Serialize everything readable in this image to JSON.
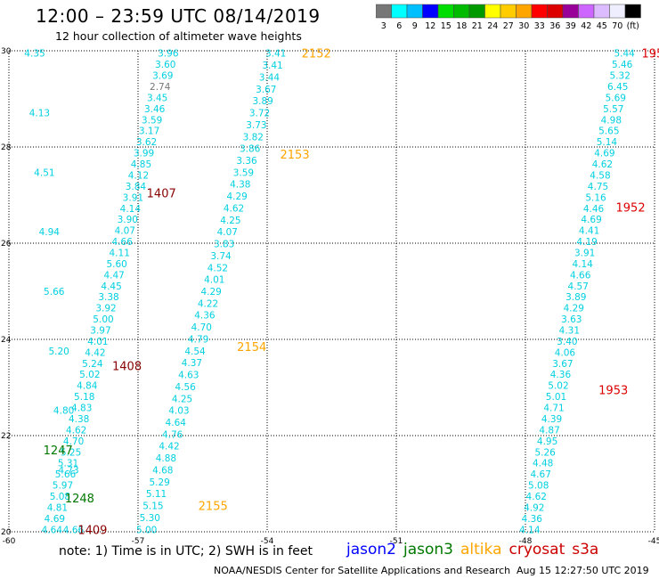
{
  "header": {
    "title": "12:00 – 23:59 UTC 08/14/2019",
    "subtitle": "12 hour collection of altimeter wave heights"
  },
  "color_scale": {
    "colors": [
      "#777777",
      "#00ffff",
      "#00bfff",
      "#0000ff",
      "#00dd00",
      "#00bb00",
      "#009900",
      "#ffff00",
      "#ffcc00",
      "#ffa500",
      "#ff0000",
      "#dd0000",
      "#990099",
      "#cc66ff",
      "#ddbbff",
      "#eeeeff",
      "#000000"
    ],
    "labels": [
      "3",
      "6",
      "9",
      "12",
      "15",
      "18",
      "21",
      "24",
      "27",
      "30",
      "33",
      "36",
      "39",
      "42",
      "45",
      "70",
      "(ft)"
    ]
  },
  "footer": {
    "note": "note:  1) Time is in UTC;  2) SWH is in feet",
    "satellites": [
      {
        "name": "jason2",
        "color": "#0000ff"
      },
      {
        "name": "jason3",
        "color": "#007700"
      },
      {
        "name": "altika",
        "color": "#ffa500"
      },
      {
        "name": "cryosat",
        "color": "#cc0000"
      },
      {
        "name": "s3a",
        "color": "#cc0000"
      }
    ],
    "credit": "NOAA/NESDIS Center for Satellite Applications and Research",
    "timestamp": "Aug 15 12:27:50 UTC 2019"
  },
  "chart_data": {
    "type": "scatter",
    "title": "12 hour collection of altimeter wave heights",
    "xlabel": "",
    "ylabel": "",
    "xlim": [
      -60,
      -45
    ],
    "ylim": [
      20,
      30
    ],
    "x_ticks": [
      "-60",
      "-57",
      "-54",
      "-51",
      "-48",
      "-45"
    ],
    "y_ticks": [
      "20",
      "22",
      "24",
      "26",
      "28",
      "30"
    ],
    "grid": true,
    "tracks": [
      {
        "id": "track-1",
        "x0": -56.3,
        "x1": -59.0,
        "values": [
          "3.96",
          "3.60",
          "3.69",
          "2.74",
          "3.45",
          "3.46",
          "3.59",
          "3.17",
          "3.62",
          "3.99",
          "4.85",
          "4.12",
          "3.84",
          "3.91",
          "4.14",
          "3.90",
          "4.07",
          "4.66",
          "4.11",
          "5.60",
          "4.47",
          "4.45",
          "3.38",
          "3.92",
          "5.00",
          "3.97",
          "4.01",
          "4.42",
          "5.24",
          "5.02",
          "4.84",
          "5.18",
          "4.83",
          "4.38",
          "4.62",
          "4.70",
          "5.25",
          "5.31",
          "5.66",
          "5.97",
          "5.08",
          "4.81",
          "4.69",
          "4.64"
        ]
      },
      {
        "id": "track-2",
        "x0": -59.4,
        "x1": -58.5,
        "values": [
          "4.35",
          "4.13",
          "4.51",
          "4.94",
          "5.66",
          "5.20",
          "4.80",
          "4.73",
          "4.66"
        ]
      },
      {
        "id": "track-3",
        "x0": -53.8,
        "x1": -56.8,
        "values": [
          "3.41",
          "3.41",
          "3.44",
          "3.67",
          "3.89",
          "3.72",
          "3.73",
          "3.82",
          "3.86",
          "3.36",
          "3.59",
          "4.38",
          "4.29",
          "4.62",
          "4.25",
          "4.07",
          "3.83",
          "3.74",
          "4.52",
          "4.01",
          "4.29",
          "4.22",
          "4.36",
          "4.70",
          "4.79",
          "4.54",
          "4.37",
          "4.63",
          "4.56",
          "4.25",
          "4.03",
          "4.64",
          "4.76",
          "4.42",
          "4.88",
          "4.68",
          "5.29",
          "5.11",
          "5.15",
          "5.30",
          "5.00"
        ]
      },
      {
        "id": "track-4",
        "x0": -45.7,
        "x1": -47.9,
        "values": [
          "5.44",
          "5.46",
          "5.32",
          "6.45",
          "5.69",
          "5.57",
          "4.98",
          "5.65",
          "5.14",
          "4.69",
          "4.62",
          "4.58",
          "4.75",
          "5.16",
          "4.46",
          "4.69",
          "4.41",
          "4.19",
          "3.91",
          "4.14",
          "4.66",
          "4.57",
          "3.89",
          "4.29",
          "3.63",
          "4.31",
          "3.40",
          "4.06",
          "3.67",
          "4.36",
          "5.02",
          "5.01",
          "4.71",
          "4.39",
          "4.87",
          "4.95",
          "5.26",
          "4.48",
          "4.67",
          "5.08",
          "4.62",
          "4.92",
          "4.36",
          "4.14"
        ]
      }
    ],
    "time_labels": [
      {
        "text": "2152",
        "lon": -53.2,
        "lat": 29.95,
        "color": "#ffa500"
      },
      {
        "text": "2153",
        "lon": -53.7,
        "lat": 27.85,
        "color": "#ffa500"
      },
      {
        "text": "2154",
        "lon": -54.7,
        "lat": 23.85,
        "color": "#ffa500"
      },
      {
        "text": "2155",
        "lon": -55.6,
        "lat": 20.55,
        "color": "#ffa500"
      },
      {
        "text": "1407",
        "lon": -56.8,
        "lat": 27.05,
        "color": "#880000"
      },
      {
        "text": "1408",
        "lon": -57.6,
        "lat": 23.45,
        "color": "#880000"
      },
      {
        "text": "1409",
        "lon": -58.4,
        "lat": 20.05,
        "color": "#880000"
      },
      {
        "text": "1247",
        "lon": -59.2,
        "lat": 21.7,
        "color": "#007700"
      },
      {
        "text": "1248",
        "lon": -58.7,
        "lat": 20.7,
        "color": "#007700"
      },
      {
        "text": "1952",
        "lon": -45.9,
        "lat": 26.75,
        "color": "#dd0000"
      },
      {
        "text": "1953",
        "lon": -46.3,
        "lat": 22.95,
        "color": "#dd0000"
      },
      {
        "text": "195",
        "lon": -45.3,
        "lat": 29.95,
        "color": "#dd0000"
      }
    ]
  }
}
